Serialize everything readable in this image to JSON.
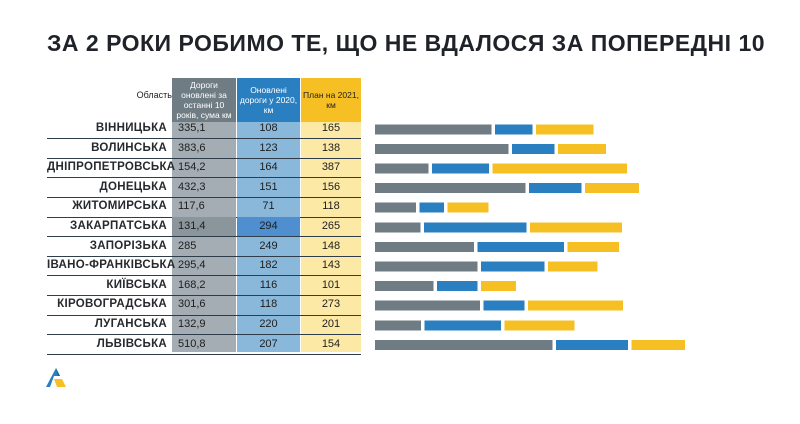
{
  "title": "ЗА 2 РОКИ РОБИМО ТЕ, ЩО НЕ ВДАЛОСЯ ЗА ПОПЕРЕДНІ 10",
  "table": {
    "region_header": "Область",
    "headers": [
      "Дороги оновлені за останні 10 років, сума км",
      "Оновлені дороги у 2020, км",
      "План на 2021, км"
    ],
    "rows": [
      {
        "region": "ВІННИЦЬКА",
        "hist": "335,1",
        "upd": "108",
        "plan": "165"
      },
      {
        "region": "ВОЛИНСЬКА",
        "hist": "383,6",
        "upd": "123",
        "plan": "138"
      },
      {
        "region": "ДНІПРОПЕТРОВСЬКА",
        "hist": "154,2",
        "upd": "164",
        "plan": "387"
      },
      {
        "region": "ДОНЕЦЬКА",
        "hist": "432,3",
        "upd": "151",
        "plan": "156"
      },
      {
        "region": "ЖИТОМИРСЬКА",
        "hist": "117,6",
        "upd": "71",
        "plan": "118"
      },
      {
        "region": "ЗАКАРПАТСЬКА",
        "hist": "131,4",
        "upd": "294",
        "plan": "265"
      },
      {
        "region": "ЗАПОРІЗЬКА",
        "hist": "285",
        "upd": "249",
        "plan": "148"
      },
      {
        "region": "ІВАНО-ФРАНКІВСЬКА",
        "hist": "295,4",
        "upd": "182",
        "plan": "143"
      },
      {
        "region": "КИЇВСЬКА",
        "hist": "168,2",
        "upd": "116",
        "plan": "101"
      },
      {
        "region": "КІРОВОГРАДСЬКА",
        "hist": "301,6",
        "upd": "118",
        "plan": "273"
      },
      {
        "region": "ЛУГАНСЬКА",
        "hist": "132,9",
        "upd": "220",
        "plan": "201"
      },
      {
        "region": "ЛЬВІВСЬКА",
        "hist": "510,8",
        "upd": "207",
        "plan": "154"
      }
    ]
  },
  "colors": {
    "hist": "#6f7c84",
    "upd": "#2a7fc1",
    "plan": "#f6c024"
  },
  "chart_data": {
    "type": "bar",
    "stacked": true,
    "orientation": "horizontal",
    "categories": [
      "ВІННИЦЬКА",
      "ВОЛИНСЬКА",
      "ДНІПРОПЕТРОВСЬКА",
      "ДОНЕЦЬКА",
      "ЖИТОМИРСЬКА",
      "ЗАКАРПАТСЬКА",
      "ЗАПОРІЗЬКА",
      "ІВАНО-ФРАНКІВСЬКА",
      "КИЇВСЬКА",
      "КІРОВОГРАДСЬКА",
      "ЛУГАНСЬКА",
      "ЛЬВІВСЬКА"
    ],
    "series": [
      {
        "values": [
          335.1,
          383.6,
          154.2,
          432.3,
          117.6,
          131.4,
          285,
          295.4,
          168.2,
          301.6,
          132.9,
          510.8
        ]
      },
      {
        "values": [
          108,
          123,
          164,
          151,
          71,
          294,
          249,
          182,
          116,
          118,
          220,
          207
        ]
      },
      {
        "values": [
          165,
          138,
          387,
          156,
          118,
          265,
          148,
          143,
          101,
          273,
          201,
          154
        ]
      }
    ],
    "bar_gap_units": 10,
    "xmax": 1150
  }
}
